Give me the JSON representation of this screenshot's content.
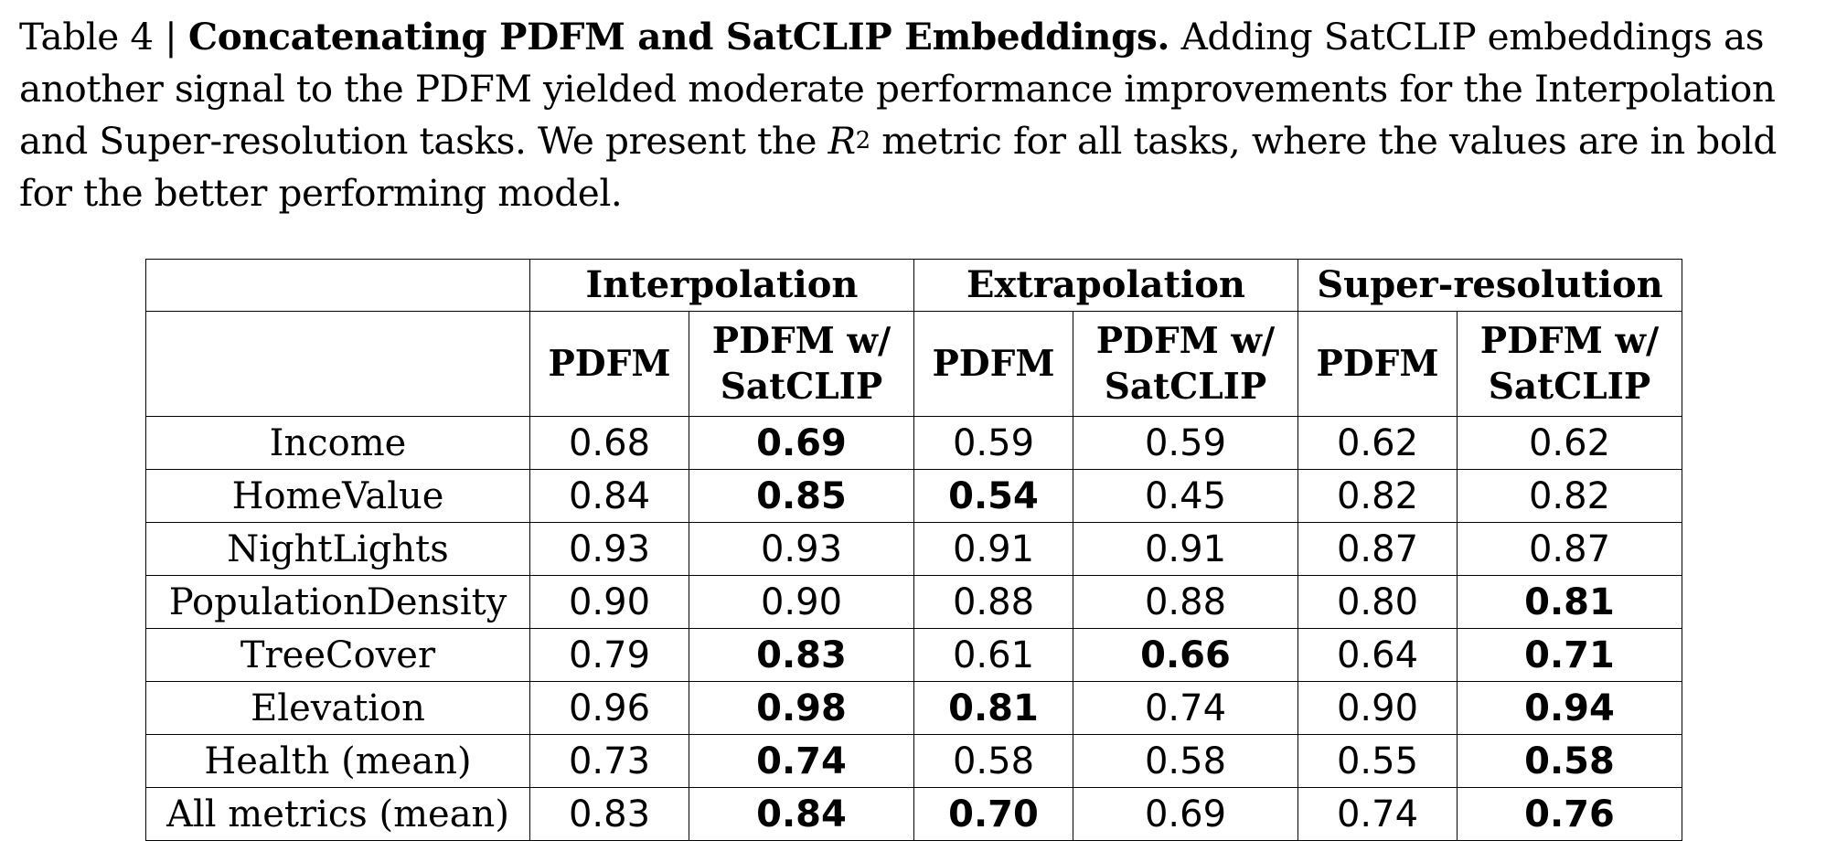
{
  "caption": {
    "prefix": "Table 4 | ",
    "title": "Concatenating PDFM and SatCLIP Embeddings.",
    "text_a": " Adding SatCLIP embeddings as another signal to the PDFM yielded moderate performance improvements for the Interpolation and Super-resolution tasks. We present the ",
    "metric": "R",
    "metric_sup": "2",
    "text_b": " metric for all tasks, where the values are in bold for the better performing model."
  },
  "table": {
    "groups": [
      "Interpolation",
      "Extrapolation",
      "Super-resolution"
    ],
    "sub_a": "PDFM",
    "sub_b_line1": "PDFM w/",
    "sub_b_line2": "SatCLIP",
    "rows": [
      {
        "label": "Income",
        "v": [
          "0.68",
          "0.69",
          "0.59",
          "0.59",
          "0.62",
          "0.62"
        ],
        "bold": [
          false,
          true,
          false,
          false,
          false,
          false
        ]
      },
      {
        "label": "HomeValue",
        "v": [
          "0.84",
          "0.85",
          "0.54",
          "0.45",
          "0.82",
          "0.82"
        ],
        "bold": [
          false,
          true,
          true,
          false,
          false,
          false
        ]
      },
      {
        "label": "NightLights",
        "v": [
          "0.93",
          "0.93",
          "0.91",
          "0.91",
          "0.87",
          "0.87"
        ],
        "bold": [
          false,
          false,
          false,
          false,
          false,
          false
        ]
      },
      {
        "label": "PopulationDensity",
        "v": [
          "0.90",
          "0.90",
          "0.88",
          "0.88",
          "0.80",
          "0.81"
        ],
        "bold": [
          false,
          false,
          false,
          false,
          false,
          true
        ]
      },
      {
        "label": "TreeCover",
        "v": [
          "0.79",
          "0.83",
          "0.61",
          "0.66",
          "0.64",
          "0.71"
        ],
        "bold": [
          false,
          true,
          false,
          true,
          false,
          true
        ]
      },
      {
        "label": "Elevation",
        "v": [
          "0.96",
          "0.98",
          "0.81",
          "0.74",
          "0.90",
          "0.94"
        ],
        "bold": [
          false,
          true,
          true,
          false,
          false,
          true
        ]
      },
      {
        "label": "Health (mean)",
        "v": [
          "0.73",
          "0.74",
          "0.58",
          "0.58",
          "0.55",
          "0.58"
        ],
        "bold": [
          false,
          true,
          false,
          false,
          false,
          true
        ]
      },
      {
        "label": "All metrics (mean)",
        "v": [
          "0.83",
          "0.84",
          "0.70",
          "0.69",
          "0.74",
          "0.76"
        ],
        "bold": [
          false,
          true,
          true,
          false,
          false,
          true
        ]
      }
    ]
  }
}
